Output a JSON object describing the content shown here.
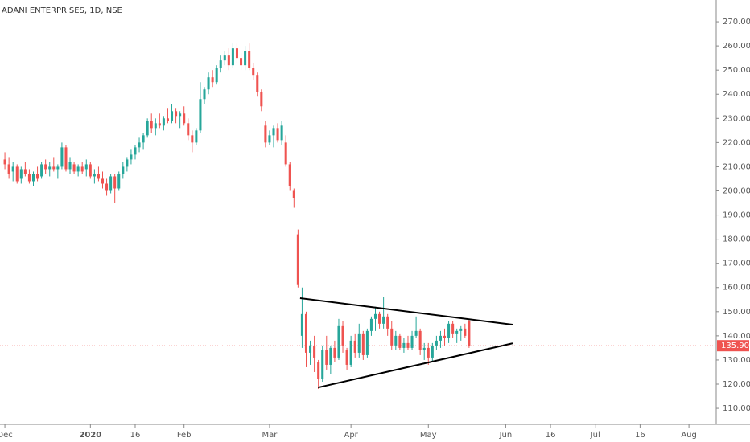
{
  "chart_data": {
    "type": "candlestick",
    "title": "ADANI ENTERPRISES, 1D, NSE",
    "up_color": "#26a69a",
    "down_color": "#ef5350",
    "trendline_color": "#000000",
    "ylim": [
      103.7,
      279.0
    ],
    "yticks": [
      {
        "value": 110,
        "label": "110.00"
      },
      {
        "value": 120,
        "label": "120.00"
      },
      {
        "value": 130,
        "label": "130.00"
      },
      {
        "value": 140,
        "label": "140.00"
      },
      {
        "value": 150,
        "label": "150.00"
      },
      {
        "value": 160,
        "label": "160.00"
      },
      {
        "value": 170,
        "label": "170.00"
      },
      {
        "value": 180,
        "label": "180.00"
      },
      {
        "value": 190,
        "label": "190.00"
      },
      {
        "value": 200,
        "label": "200.00"
      },
      {
        "value": 210,
        "label": "210.00"
      },
      {
        "value": 220,
        "label": "220.00"
      },
      {
        "value": 230,
        "label": "230.00"
      },
      {
        "value": 240,
        "label": "240.00"
      },
      {
        "value": 250,
        "label": "250.00"
      },
      {
        "value": 260,
        "label": "260.00"
      },
      {
        "value": 270,
        "label": "270.00"
      }
    ],
    "xlim": [
      -1.2,
      174.7
    ],
    "xticks": [
      {
        "value": 0,
        "label": "Dec"
      },
      {
        "value": 21,
        "label": "2020"
      },
      {
        "value": 32,
        "label": "16"
      },
      {
        "value": 44,
        "label": "Feb"
      },
      {
        "value": 65,
        "label": "Mar"
      },
      {
        "value": 85,
        "label": "Apr"
      },
      {
        "value": 104,
        "label": "May"
      },
      {
        "value": 123,
        "label": "Jun"
      },
      {
        "value": 134,
        "label": "16"
      },
      {
        "value": 145,
        "label": "Jul"
      },
      {
        "value": 156,
        "label": "16"
      },
      {
        "value": 168,
        "label": "Aug"
      }
    ],
    "last_price": 135.9,
    "last_price_label": "135.90",
    "trendlines": [
      {
        "x": [
          72.5,
          124.7
        ],
        "y": [
          155.6,
          144.6
        ]
      },
      {
        "x": [
          76.9,
          124.7
        ],
        "y": [
          118.6,
          136.9
        ]
      }
    ],
    "ohlc": [
      [
        213,
        216,
        209,
        211
      ],
      [
        211,
        214,
        205,
        207
      ],
      [
        208,
        212,
        204,
        210
      ],
      [
        210,
        211,
        203,
        204
      ],
      [
        205,
        210,
        203,
        209
      ],
      [
        209,
        212,
        206,
        207
      ],
      [
        207,
        209,
        203,
        204
      ],
      [
        204,
        208,
        202,
        207
      ],
      [
        207,
        210,
        204,
        205
      ],
      [
        206,
        212,
        205,
        211
      ],
      [
        211,
        213,
        207,
        209
      ],
      [
        209,
        212,
        206,
        210
      ],
      [
        210,
        214,
        208,
        209
      ],
      [
        209,
        211,
        205,
        210
      ],
      [
        210,
        220,
        209,
        218
      ],
      [
        218,
        219,
        208,
        209
      ],
      [
        209,
        214,
        207,
        212
      ],
      [
        211,
        212,
        207,
        208
      ],
      [
        208,
        211,
        206,
        210
      ],
      [
        210,
        212,
        207,
        208
      ],
      [
        209,
        213,
        206,
        211
      ],
      [
        211,
        212,
        205,
        206
      ],
      [
        206,
        209,
        203,
        207
      ],
      [
        207,
        210,
        204,
        205
      ],
      [
        205,
        208,
        201,
        203
      ],
      [
        203,
        205,
        198,
        200
      ],
      [
        200,
        207,
        199,
        206
      ],
      [
        206,
        207,
        195,
        201
      ],
      [
        201,
        208,
        200,
        207
      ],
      [
        207,
        212,
        205,
        210
      ],
      [
        210,
        214,
        208,
        213
      ],
      [
        213,
        217,
        211,
        215
      ],
      [
        215,
        219,
        213,
        218
      ],
      [
        218,
        222,
        216,
        220
      ],
      [
        220,
        224,
        217,
        223
      ],
      [
        223,
        230,
        222,
        229
      ],
      [
        229,
        232,
        224,
        226
      ],
      [
        226,
        230,
        223,
        228
      ],
      [
        228,
        232,
        226,
        227
      ],
      [
        227,
        231,
        225,
        230
      ],
      [
        230,
        234,
        228,
        229
      ],
      [
        229,
        236,
        228,
        233
      ],
      [
        233,
        234,
        228,
        231
      ],
      [
        231,
        233,
        226,
        232
      ],
      [
        232,
        235,
        227,
        228
      ],
      [
        228,
        230,
        221,
        223
      ],
      [
        223,
        225,
        216,
        220
      ],
      [
        220,
        226,
        219,
        225
      ],
      [
        225,
        245,
        224,
        238
      ],
      [
        238,
        243,
        236,
        242
      ],
      [
        242,
        249,
        240,
        247
      ],
      [
        247,
        250,
        243,
        245
      ],
      [
        245,
        252,
        244,
        251
      ],
      [
        251,
        256,
        249,
        254
      ],
      [
        254,
        258,
        252,
        256
      ],
      [
        256,
        259,
        250,
        252
      ],
      [
        252,
        261,
        251,
        259
      ],
      [
        259,
        261,
        253,
        255
      ],
      [
        255,
        257,
        250,
        252
      ],
      [
        252,
        260,
        250,
        258
      ],
      [
        258,
        261,
        250,
        251
      ],
      [
        251,
        253,
        246,
        248
      ],
      [
        248,
        249,
        239,
        241
      ],
      [
        241,
        242,
        233,
        235
      ],
      [
        227,
        229,
        218,
        220
      ],
      [
        220,
        225,
        219,
        223
      ],
      [
        223,
        227,
        218,
        226
      ],
      [
        226,
        228,
        220,
        221
      ],
      [
        221,
        229,
        219,
        227
      ],
      [
        220,
        223,
        210,
        211
      ],
      [
        211,
        212,
        200,
        202
      ],
      [
        200,
        201,
        193,
        197
      ],
      [
        182,
        184,
        160,
        161
      ],
      [
        140,
        160,
        135,
        149
      ],
      [
        149,
        150,
        127,
        133
      ],
      [
        133,
        138,
        128,
        136
      ],
      [
        136,
        140,
        125,
        131
      ],
      [
        129,
        130,
        118,
        122
      ],
      [
        122,
        136,
        121,
        134
      ],
      [
        134,
        140,
        126,
        128
      ],
      [
        128,
        136,
        124,
        135
      ],
      [
        135,
        138,
        129,
        131
      ],
      [
        131,
        147,
        130,
        144
      ],
      [
        144,
        146,
        133,
        136
      ],
      [
        134,
        135,
        126,
        128
      ],
      [
        128,
        140,
        127,
        138
      ],
      [
        138,
        141,
        131,
        133
      ],
      [
        133,
        145,
        131,
        141
      ],
      [
        141,
        142,
        130,
        132
      ],
      [
        132,
        143,
        131,
        142
      ],
      [
        142,
        148,
        140,
        147
      ],
      [
        147,
        152,
        142,
        149
      ],
      [
        149,
        150,
        143,
        145
      ],
      [
        145,
        156,
        143,
        148
      ],
      [
        148,
        149,
        140,
        143
      ],
      [
        143,
        146,
        134,
        136
      ],
      [
        136,
        142,
        134,
        140
      ],
      [
        140,
        141,
        134,
        135
      ],
      [
        135,
        139,
        133,
        137
      ],
      [
        137,
        140,
        134,
        135
      ],
      [
        135,
        142,
        134,
        140
      ],
      [
        140,
        148,
        139,
        142
      ],
      [
        142,
        143,
        132,
        134
      ],
      [
        134,
        137,
        130,
        135
      ],
      [
        135,
        137,
        128,
        131
      ],
      [
        131,
        137,
        129,
        136
      ],
      [
        136,
        140,
        134,
        138
      ],
      [
        138,
        142,
        135,
        140
      ],
      [
        140,
        143,
        136,
        139
      ],
      [
        139,
        146,
        137,
        145
      ],
      [
        145,
        146,
        139,
        141
      ],
      [
        141,
        143,
        137,
        142
      ],
      [
        142,
        144,
        138,
        143
      ],
      [
        143,
        145,
        139,
        140
      ],
      [
        146,
        147,
        135,
        135.9
      ]
    ]
  }
}
